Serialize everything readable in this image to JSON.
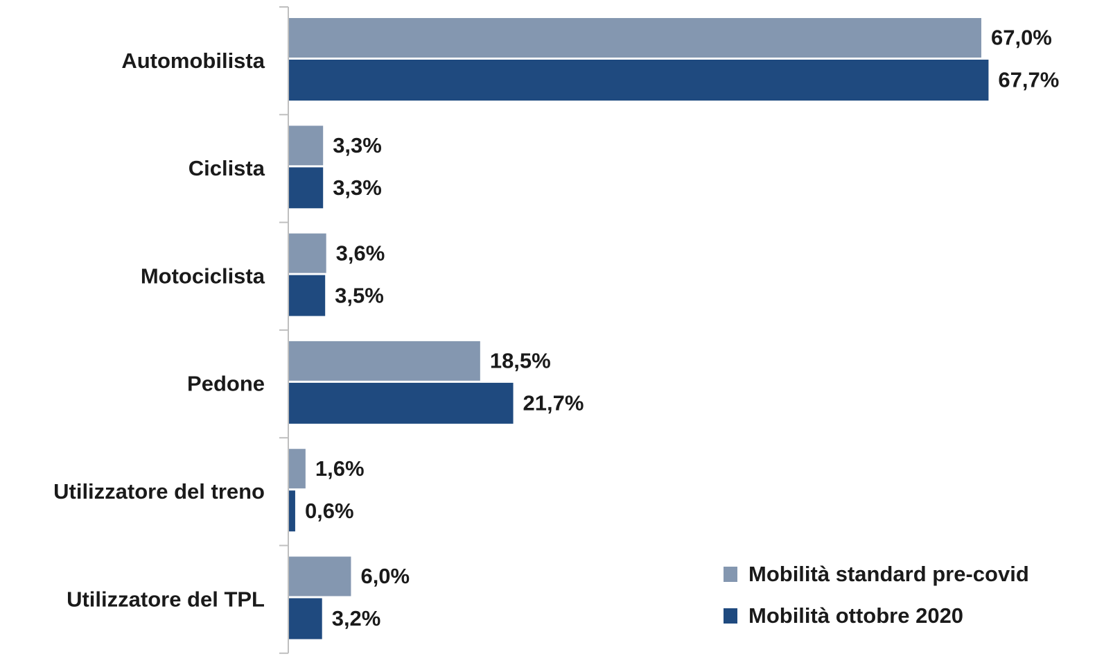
{
  "chart_data": {
    "type": "bar",
    "orientation": "horizontal",
    "categories": [
      "Automobilista",
      "Ciclista",
      "Motociclista",
      "Pedone",
      "Utilizzatore del treno",
      "Utilizzatore del TPL"
    ],
    "series": [
      {
        "name": "Mobilità standard pre-covid",
        "color": "#8497b0",
        "values": [
          67.0,
          3.3,
          3.6,
          18.5,
          1.6,
          6.0
        ],
        "value_labels": [
          "67,0%",
          "3,3%",
          "3,6%",
          "18,5%",
          "1,6%",
          "6,0%"
        ]
      },
      {
        "name": "Mobilità ottobre 2020",
        "color": "#1f4a7f",
        "values": [
          67.7,
          3.3,
          3.5,
          21.7,
          0.6,
          3.2
        ],
        "value_labels": [
          "67,7%",
          "3,3%",
          "3,5%",
          "21,7%",
          "0,6%",
          "3,2%"
        ]
      }
    ],
    "legend": "bottom-right"
  }
}
